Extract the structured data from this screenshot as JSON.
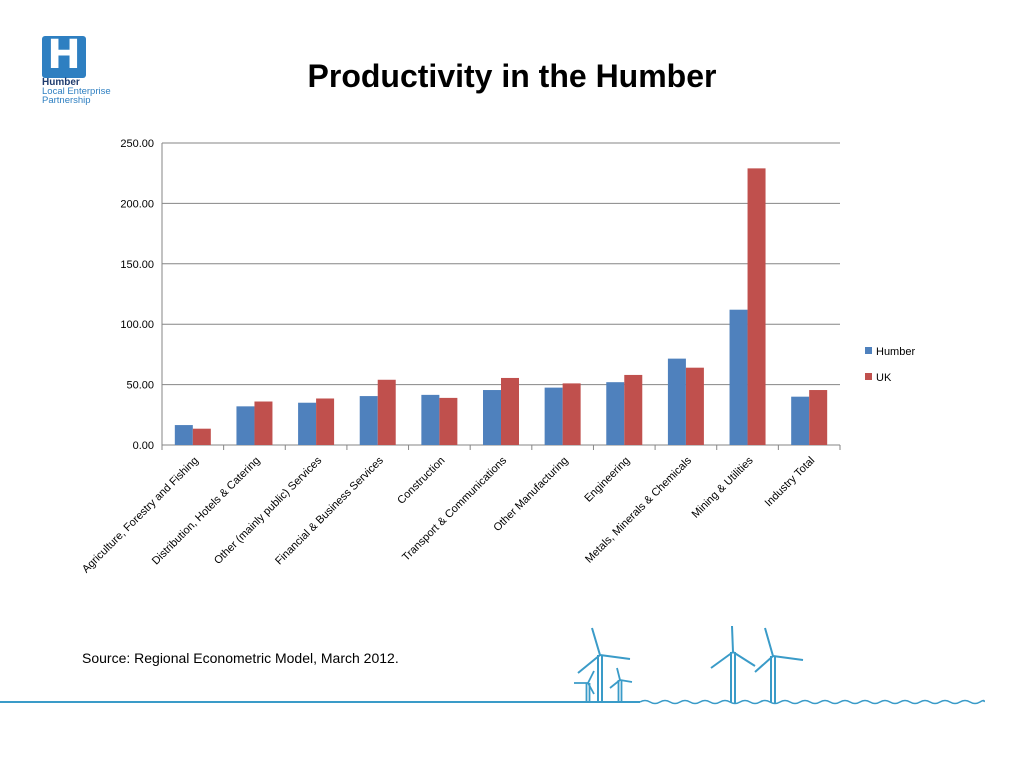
{
  "logo": {
    "line1": "Humber",
    "line2": "Local Enterprise",
    "line3": "Partnership",
    "brand_color": "#2e7fc1",
    "icon": "letter-h-logo-icon"
  },
  "slide": {
    "title": "Productivity in the Humber",
    "source": "Source: Regional Econometric Model, March 2012."
  },
  "chart_data": {
    "type": "bar",
    "title": "Productivity in the Humber",
    "xlabel": "",
    "ylabel": "",
    "ylim": [
      0,
      250
    ],
    "yticks": [
      "0.00",
      "50.00",
      "100.00",
      "150.00",
      "200.00",
      "250.00"
    ],
    "grid": true,
    "legend_position": "right",
    "categories": [
      "Agriculture, Forestry and Fishing",
      "Distribution, Hotels & Catering",
      "Other (mainly public) Services",
      "Financial & Business Services",
      "Construction",
      "Transport & Communications",
      "Other Manufacturing",
      "Engineering",
      "Metals, Minerals & Chemicals",
      "Mining & Utilities",
      "Industry Total"
    ],
    "series": [
      {
        "name": "Humber",
        "color": "#4f81bd",
        "values": [
          16.5,
          32,
          35,
          40.5,
          41.5,
          45.5,
          47.5,
          52,
          71.5,
          112,
          40
        ]
      },
      {
        "name": "UK",
        "color": "#c0504d",
        "values": [
          13.5,
          36,
          38.5,
          54,
          39,
          55.5,
          51,
          58,
          64,
          229,
          45.5
        ]
      }
    ]
  },
  "decor": {
    "line_color": "#3a9bc8",
    "wind_turbines": [
      "wind-turbine-icon",
      "wind-turbine-icon",
      "wind-turbine-icon",
      "wind-turbine-icon",
      "wind-turbine-icon"
    ]
  }
}
